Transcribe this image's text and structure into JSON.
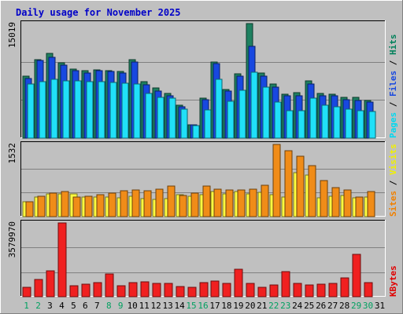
{
  "chart_data": {
    "type": "bar",
    "title": "Daily usage for November 2025",
    "days": [
      "1",
      "2",
      "3",
      "4",
      "5",
      "6",
      "7",
      "8",
      "9",
      "10",
      "11",
      "12",
      "13",
      "14",
      "15",
      "16",
      "17",
      "18",
      "19",
      "20",
      "21",
      "22",
      "23",
      "24",
      "25",
      "26",
      "27",
      "28",
      "29",
      "30",
      "31"
    ],
    "weekend_days": [
      "1",
      "2",
      "8",
      "9",
      "15",
      "16",
      "22",
      "23",
      "29",
      "30"
    ],
    "panels": [
      {
        "id": "hits",
        "max_label": "15019",
        "max": 15019,
        "legend": [
          {
            "name": "Pages",
            "color": "#00d8f0"
          },
          {
            "name": "Files",
            "color": "#1848e0"
          },
          {
            "name": "Hits",
            "color": "#00805a"
          }
        ],
        "separator": " / ",
        "series": [
          {
            "name": "Hits",
            "color": "#1e8060",
            "values": [
              8100,
              10300,
              11100,
              9900,
              9100,
              8800,
              8900,
              8800,
              8700,
              10300,
              7400,
              6600,
              5900,
              4300,
              1800,
              5200,
              10000,
              6400,
              8400,
              15019,
              8500,
              7100,
              5800,
              6000,
              7500,
              5900,
              5800,
              5400,
              5400,
              4900
            ]
          },
          {
            "name": "Files",
            "color": "#1848e0",
            "values": [
              7800,
              10200,
              10600,
              9600,
              8800,
              8500,
              8800,
              8700,
              8500,
              10000,
              7000,
              6200,
              5600,
              4100,
              1700,
              5000,
              9800,
              6200,
              8100,
              12000,
              8100,
              6700,
              5600,
              5600,
              7100,
              5600,
              5600,
              5000,
              4900,
              4700
            ]
          },
          {
            "name": "Pages",
            "color": "#20e0f8",
            "values": [
              7100,
              7400,
              7700,
              7500,
              7500,
              7400,
              7400,
              7300,
              7200,
              7100,
              5900,
              5400,
              5200,
              3800,
              1600,
              3700,
              7700,
              4800,
              6300,
              8600,
              6700,
              4700,
              3600,
              3600,
              5200,
              4300,
              4100,
              3800,
              3600,
              3500
            ]
          }
        ]
      },
      {
        "id": "visits",
        "max_label": "1532",
        "max": 1532,
        "legend": [
          {
            "name": "Sites",
            "color": "#f08000"
          },
          {
            "name": "Visits",
            "color": "#f0f000"
          }
        ],
        "separator": " / ",
        "series": [
          {
            "name": "Visits",
            "color": "#ffff40",
            "values": [
              310,
              420,
              490,
              480,
              490,
              410,
              420,
              410,
              400,
              440,
              390,
              370,
              380,
              460,
              440,
              460,
              530,
              490,
              540,
              490,
              510,
              470,
              420,
              940,
              890,
              400,
              430,
              450,
              400,
              420
            ]
          },
          {
            "name": "Sites",
            "color": "#f08c18",
            "values": [
              310,
              430,
              500,
              530,
              420,
              430,
              460,
              500,
              550,
              560,
              550,
              590,
              650,
              450,
              500,
              650,
              590,
              560,
              570,
              590,
              660,
              1532,
              1400,
              1280,
              1080,
              760,
              610,
              560,
              420,
              530
            ]
          }
        ]
      },
      {
        "id": "kbytes",
        "max_label": "3579970",
        "max": 3579970,
        "legend": [
          {
            "name": "KBytes",
            "color": "#e00000"
          }
        ],
        "separator": "",
        "series": [
          {
            "name": "KBytes",
            "color": "#f02020",
            "values": [
              470000,
              830000,
              1260000,
              3579970,
              550000,
              620000,
              700000,
              1100000,
              550000,
              700000,
              720000,
              640000,
              650000,
              480000,
              450000,
              700000,
              750000,
              650000,
              1350000,
              650000,
              460000,
              570000,
              1230000,
              640000,
              560000,
              600000,
              650000,
              910000,
              2050000,
              680000
            ]
          }
        ]
      }
    ]
  }
}
